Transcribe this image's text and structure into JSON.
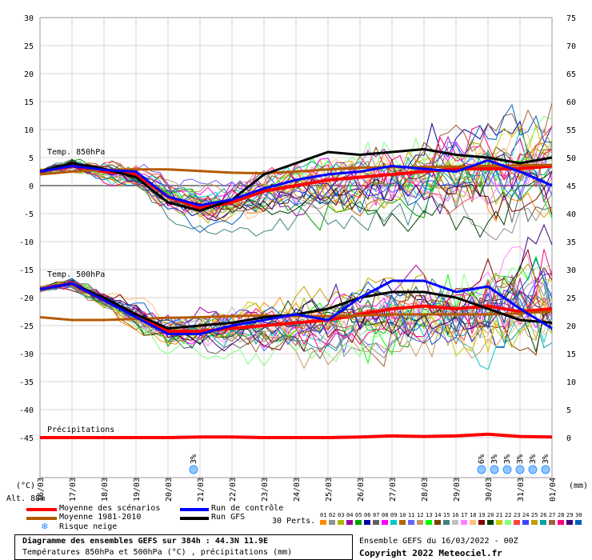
{
  "chart_data": {
    "type": "line",
    "x_dates": [
      "16/03",
      "17/03",
      "18/03",
      "19/03",
      "20/03",
      "21/03",
      "22/03",
      "23/03",
      "24/03",
      "25/03",
      "26/03",
      "27/03",
      "28/03",
      "29/03",
      "30/03",
      "31/03",
      "01/04"
    ],
    "left_axis_unit": "(°C)",
    "right_axis_unit": "(mm)",
    "left_ticks": [
      30,
      25,
      20,
      15,
      10,
      5,
      0,
      -5,
      -10,
      -15,
      -20,
      -25,
      -30,
      -35,
      -40,
      -45
    ],
    "right_ticks": [
      75,
      70,
      65,
      60,
      55,
      50,
      45,
      40,
      35,
      30,
      25,
      20,
      15,
      10,
      5,
      0
    ],
    "ylim_left": [
      -45,
      30
    ],
    "ylim_right": [
      0,
      75
    ],
    "panel_labels": {
      "t850": "Temp. 850hPa",
      "t500": "Temp. 500hPa",
      "precip": "Précipitations"
    },
    "altitude_label": "Alt. 88m",
    "snow_risk": [
      {
        "day": 4.8,
        "label": "3%"
      },
      {
        "day": 13.8,
        "label": "6%"
      },
      {
        "day": 14.2,
        "label": "3%"
      },
      {
        "day": 14.6,
        "label": "3%"
      },
      {
        "day": 15.0,
        "label": "3%"
      },
      {
        "day": 15.4,
        "label": "3%"
      },
      {
        "day": 15.8,
        "label": "3%"
      }
    ],
    "series": [
      {
        "name": "Moyenne des scénarios",
        "group": "t850",
        "color": "#ff0000",
        "values": [
          2.5,
          3.5,
          2.5,
          2,
          -2,
          -4,
          -3,
          -1,
          0,
          1,
          1.5,
          2,
          2.5,
          3,
          3,
          3,
          3.5
        ]
      },
      {
        "name": "Moyenne 1981-2010",
        "group": "t850",
        "color": "#b45a00",
        "values": [
          2,
          2.5,
          2.8,
          2.9,
          2.9,
          2.6,
          2.3,
          2.2,
          2.5,
          2.9,
          3.2,
          3.3,
          3.3,
          3.4,
          3.5,
          3.6,
          3.7
        ]
      },
      {
        "name": "Run GFS",
        "group": "t850",
        "color": "#000000",
        "values": [
          2.5,
          4,
          3,
          1.5,
          -3,
          -4.5,
          -2.5,
          2,
          4,
          6,
          5.5,
          6,
          6.5,
          5.5,
          5,
          4,
          5
        ]
      },
      {
        "name": "Run de contrôle",
        "group": "t850",
        "color": "#0000ff",
        "values": [
          2.5,
          3.5,
          2.8,
          2.5,
          -2,
          -3.5,
          -2.5,
          -0.5,
          1,
          2,
          2.5,
          3.5,
          3,
          2.5,
          4.5,
          2.5,
          0
        ]
      },
      {
        "name": "Moyenne des scénarios",
        "group": "t500",
        "color": "#ff0000",
        "values": [
          -18.5,
          -17.5,
          -20.5,
          -23,
          -26,
          -26,
          -25.5,
          -25,
          -24.5,
          -24,
          -23,
          -22,
          -21.5,
          -22,
          -21.5,
          -22.5,
          -22
        ]
      },
      {
        "name": "Moyenne 1981-2010",
        "group": "t500",
        "color": "#b45a00",
        "values": [
          -23.5,
          -24,
          -24,
          -23.8,
          -23.6,
          -23.5,
          -23.3,
          -23.2,
          -23.3,
          -23.3,
          -23.2,
          -23,
          -23,
          -23,
          -23,
          -22.8,
          -22.5
        ]
      },
      {
        "name": "Run GFS",
        "group": "t500",
        "color": "#000000",
        "values": [
          -18.5,
          -17.5,
          -20,
          -23,
          -25.5,
          -25,
          -24.5,
          -23.5,
          -23,
          -22,
          -20,
          -19,
          -19,
          -20,
          -22,
          -24,
          -24.5
        ]
      },
      {
        "name": "Run de contrôle",
        "group": "t500",
        "color": "#0000ff",
        "values": [
          -18.5,
          -17.5,
          -20.5,
          -23.5,
          -26.5,
          -26.5,
          -25,
          -24,
          -23,
          -24,
          -20,
          -17,
          -17,
          -19,
          -18,
          -22,
          -25.5
        ]
      },
      {
        "name": "Moyenne des scénarios",
        "group": "precip",
        "color": "#ff0000",
        "values": [
          0,
          0,
          0,
          0,
          0,
          0.1,
          0.1,
          0,
          0,
          0,
          0.1,
          0.3,
          0.2,
          0.3,
          0.6,
          0.2,
          0.1
        ]
      }
    ]
  },
  "legend": {
    "items": [
      {
        "label": "Moyenne des scénarios",
        "color": "#ff0000"
      },
      {
        "label": "Moyenne 1981-2010",
        "color": "#b45a00"
      },
      {
        "label": "Run de contrôle",
        "color": "#0000ff"
      },
      {
        "label": "Run GFS",
        "color": "#000000"
      }
    ],
    "snow_label": "Risque neige",
    "perts_label": "30 Perts.",
    "pert_numbers": [
      "01",
      "02",
      "03",
      "04",
      "05",
      "06",
      "07",
      "08",
      "09",
      "10",
      "11",
      "12",
      "13",
      "14",
      "15",
      "16",
      "17",
      "18",
      "19",
      "20",
      "21",
      "22",
      "23",
      "24",
      "25",
      "26",
      "27",
      "28",
      "29",
      "30"
    ],
    "pert_colors": [
      "#ff8c00",
      "#909090",
      "#b4b400",
      "#a000a0",
      "#00a000",
      "#0000a0",
      "#606060",
      "#ff00ff",
      "#00c8c8",
      "#b46400",
      "#6464ff",
      "#c89664",
      "#00ff00",
      "#804000",
      "#408080",
      "#c0c0c0",
      "#ff80ff",
      "#ffc080",
      "#800000",
      "#004000",
      "#c8c800",
      "#80ff80",
      "#ff4040",
      "#4040ff",
      "#c0a000",
      "#00a0a0",
      "#a06040",
      "#ff0080",
      "#400080",
      "#0060c0"
    ]
  },
  "footer": {
    "title": "Diagramme des ensembles GEFS sur 384h : 44.3N 11.9E",
    "subtitle": "Températures 850hPa et 500hPa (°C) , précipitations (mm)",
    "run_info": "Ensemble GEFS du 16/03/2022 - 00Z",
    "copyright": "Copyright 2022 Meteociel.fr"
  }
}
